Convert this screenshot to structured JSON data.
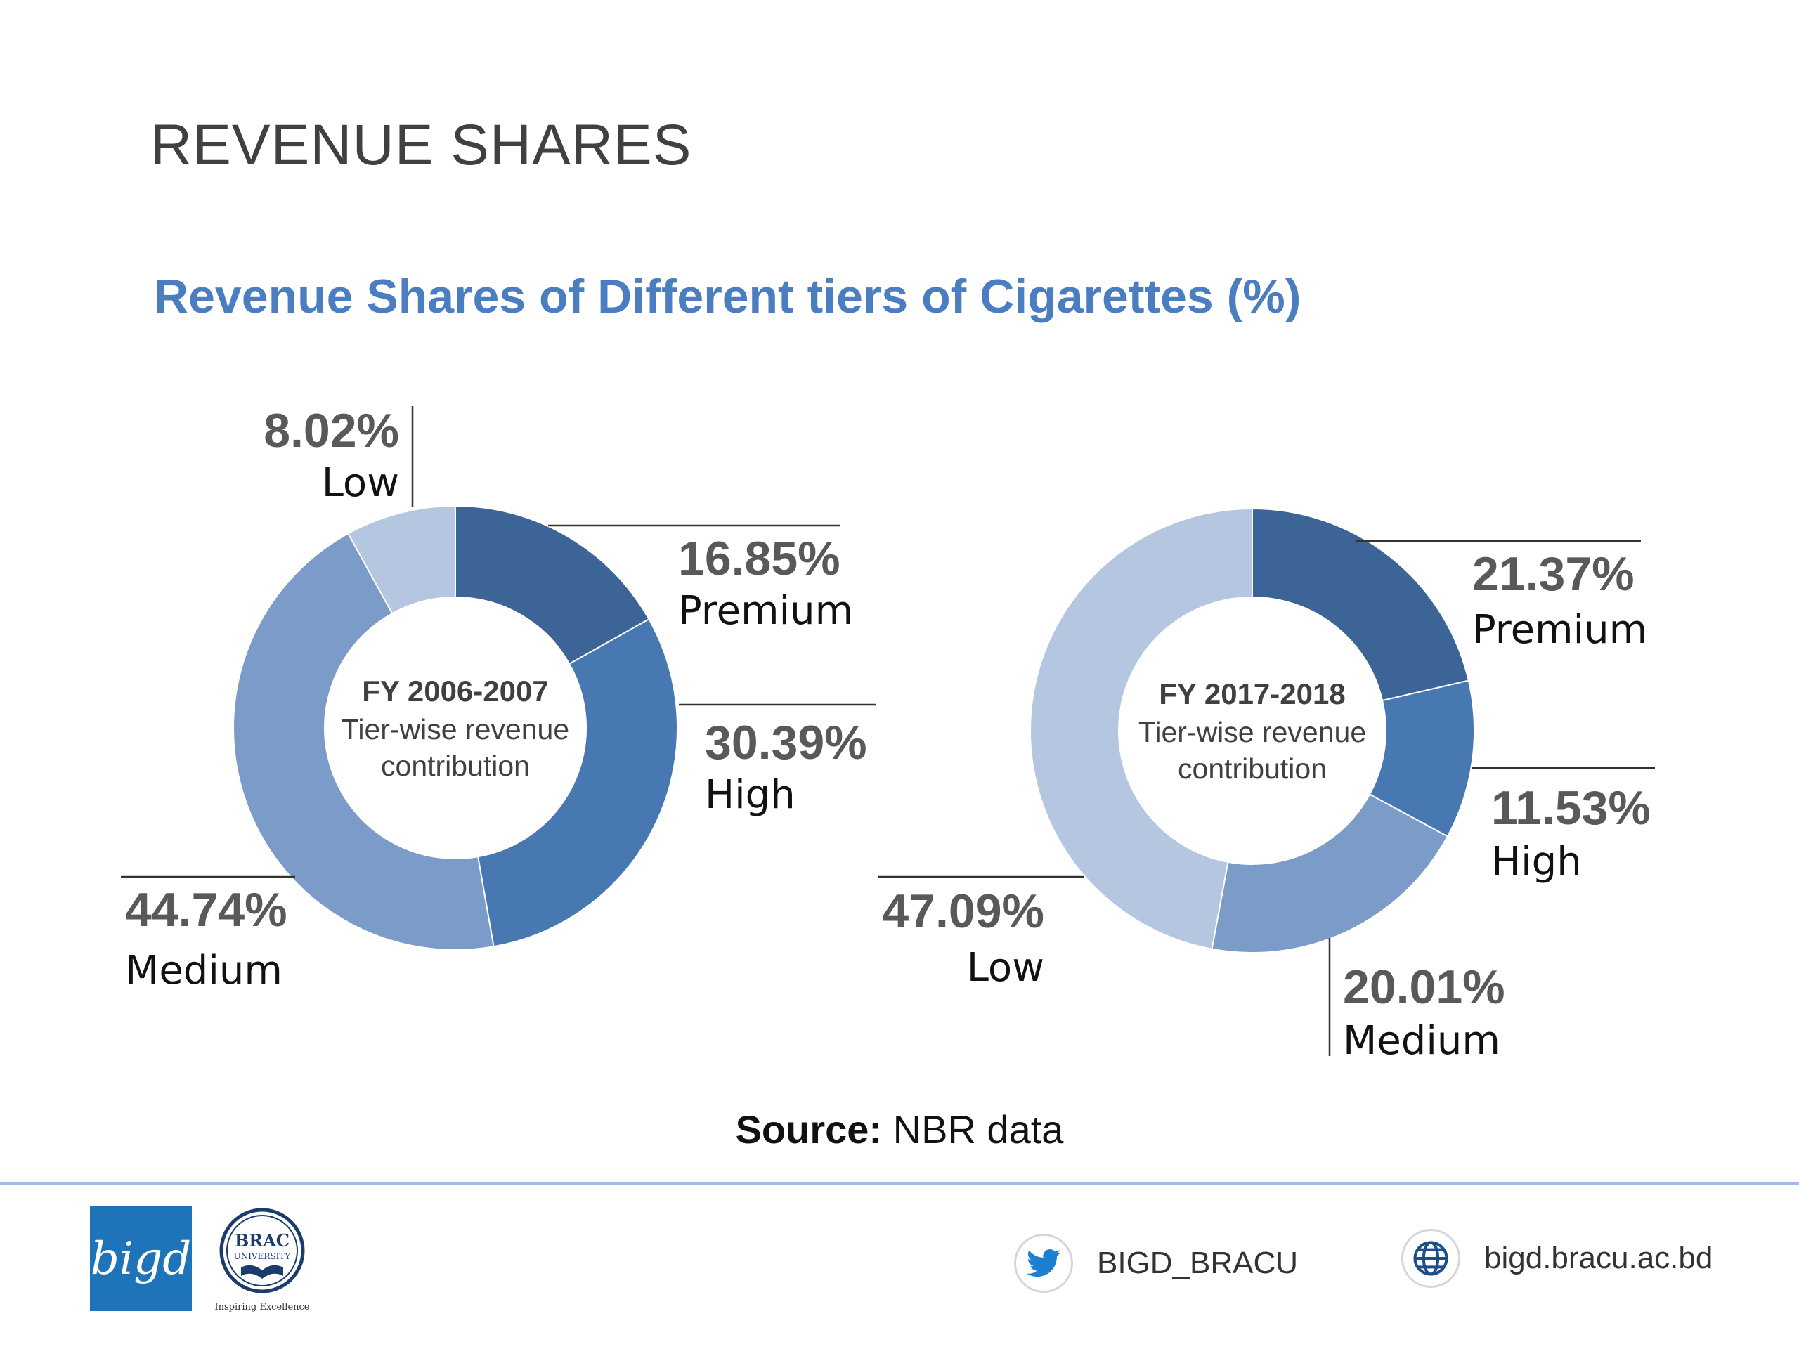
{
  "slide": {
    "title": "REVENUE SHARES",
    "heading": "Revenue Shares of Different tiers of Cigarettes (%)",
    "source_label": "Source:",
    "source_text": " NBR data"
  },
  "colors": {
    "premium": "#3c6497",
    "high": "#4878b2",
    "medium": "#7b9bc8",
    "low": "#b5c6e0",
    "heading": "#4a7ec0",
    "footer_rule": "#9dbbe3"
  },
  "chart_data": [
    {
      "type": "pie",
      "donut": true,
      "center_title": "FY 2006-2007",
      "center_subtitle_line1": "Tier-wise revenue",
      "center_subtitle_line2": "contribution",
      "categories": [
        "Premium",
        "High",
        "Medium",
        "Low"
      ],
      "values": [
        16.85,
        30.39,
        44.74,
        8.02
      ],
      "value_labels": [
        "16.85%",
        "30.39%",
        "44.74%",
        "8.02%"
      ]
    },
    {
      "type": "pie",
      "donut": true,
      "center_title": "FY 2017-2018",
      "center_subtitle_line1": "Tier-wise revenue",
      "center_subtitle_line2": "contribution",
      "categories": [
        "Premium",
        "High",
        "Medium",
        "Low"
      ],
      "values": [
        21.37,
        11.53,
        20.01,
        47.09
      ],
      "value_labels": [
        "21.37%",
        "11.53%",
        "20.01%",
        "47.09%"
      ]
    }
  ],
  "footer": {
    "logo_bigd_text": "bigd",
    "logo_brac_line1": "BRAC",
    "logo_brac_line2": "UNIVERSITY",
    "logo_brac_tagline": "Inspiring Excellence",
    "twitter_handle": "BIGD_BRACU",
    "website": "bigd.bracu.ac.bd"
  }
}
